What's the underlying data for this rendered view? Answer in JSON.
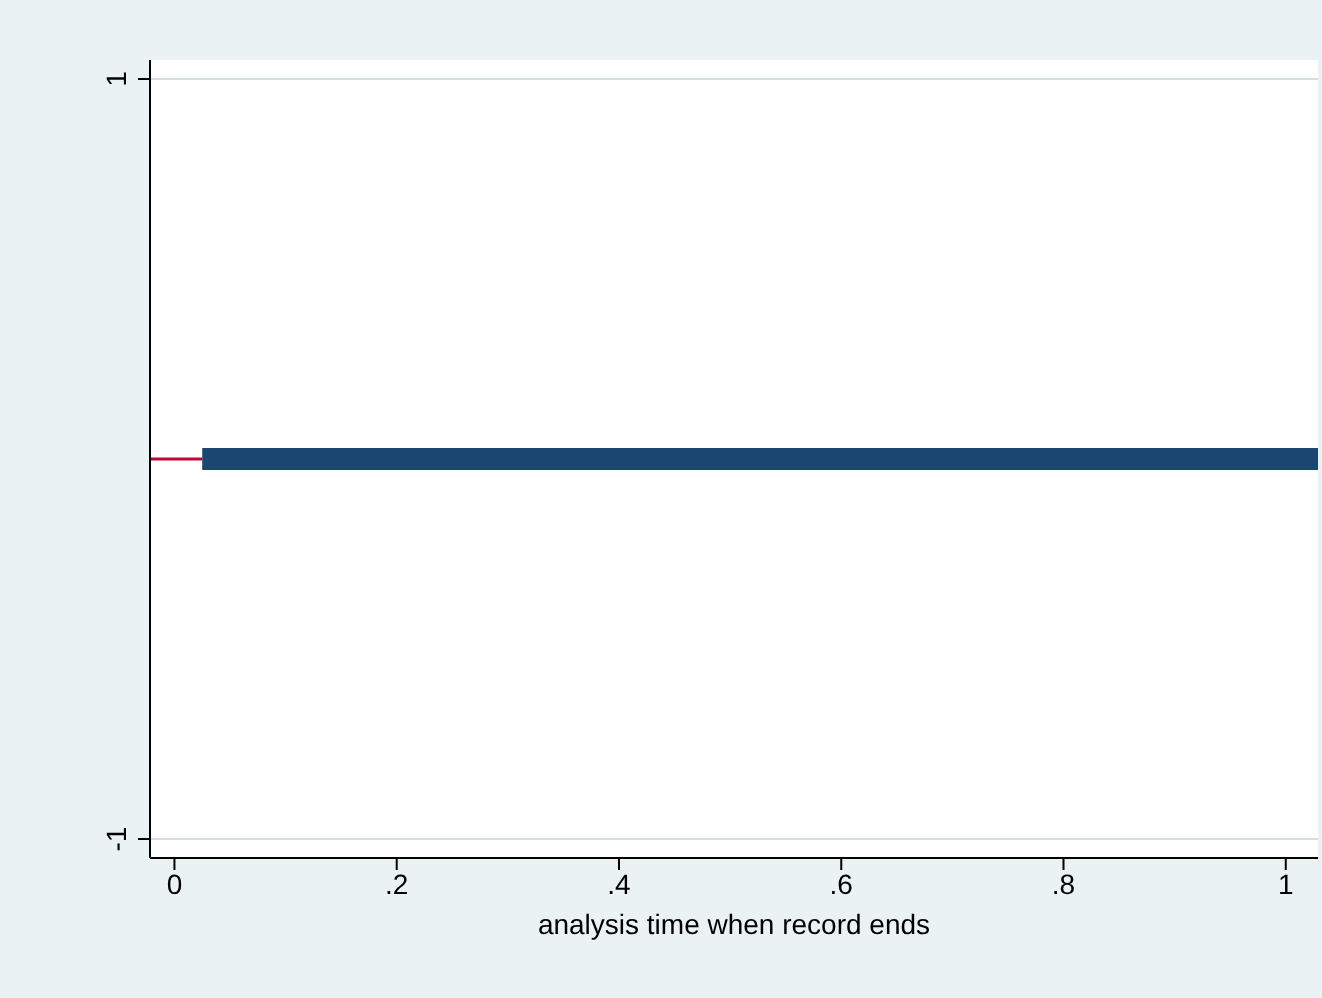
{
  "chart_data": {
    "type": "line",
    "xlabel": "analysis time when record ends",
    "xlim": [
      -0.022,
      1.029
    ],
    "xticks": [
      0,
      {
        "value": 0.2,
        "label": ".2"
      },
      {
        "value": 0.4,
        "label": ".4"
      },
      {
        "value": 0.6,
        "label": ".6"
      },
      {
        "value": 0.8,
        "label": ".8"
      },
      1
    ],
    "ylim": [
      -1.05,
      1.05
    ],
    "yticks": [
      -1,
      1
    ],
    "grid": "y",
    "marker": "none",
    "series": [
      {
        "color": "#c10534",
        "x": [
          -0.022,
          0.025
        ],
        "values": [
          0,
          0
        ]
      },
      {
        "color": "#1a476f",
        "x": [
          0.025,
          1.029
        ],
        "values": [
          0,
          0
        ]
      }
    ]
  }
}
